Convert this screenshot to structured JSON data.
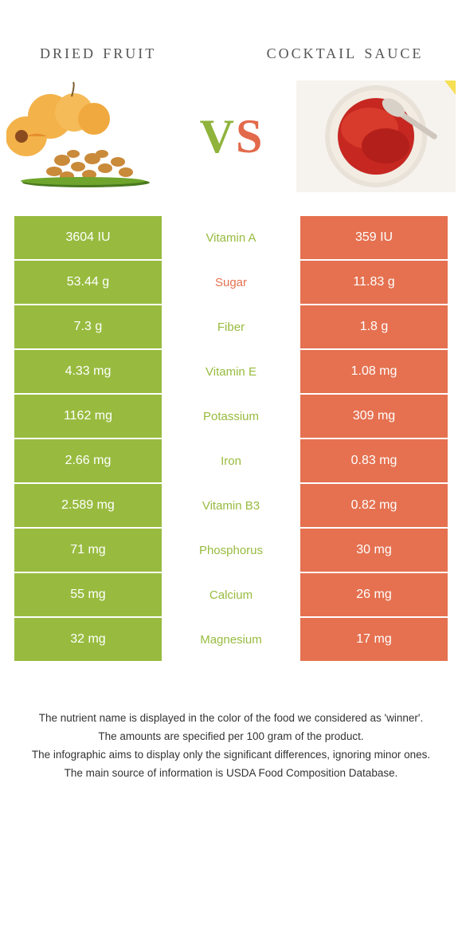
{
  "header": {
    "left_title": "dried fruit",
    "right_title": "cocktail sauce",
    "vs_v": "V",
    "vs_s": "S"
  },
  "colors": {
    "green": "#98bb3f",
    "orange": "#e57150",
    "text": "#333333"
  },
  "rows": [
    {
      "left": "3604 IU",
      "mid": "Vitamin A",
      "right": "359 IU",
      "winner": "green"
    },
    {
      "left": "53.44 g",
      "mid": "Sugar",
      "right": "11.83 g",
      "winner": "orange"
    },
    {
      "left": "7.3 g",
      "mid": "Fiber",
      "right": "1.8 g",
      "winner": "green"
    },
    {
      "left": "4.33 mg",
      "mid": "Vitamin E",
      "right": "1.08 mg",
      "winner": "green"
    },
    {
      "left": "1162 mg",
      "mid": "Potassium",
      "right": "309 mg",
      "winner": "green"
    },
    {
      "left": "2.66 mg",
      "mid": "Iron",
      "right": "0.83 mg",
      "winner": "green"
    },
    {
      "left": "2.589 mg",
      "mid": "Vitamin B3",
      "right": "0.82 mg",
      "winner": "green"
    },
    {
      "left": "71 mg",
      "mid": "Phosphorus",
      "right": "30 mg",
      "winner": "green"
    },
    {
      "left": "55 mg",
      "mid": "Calcium",
      "right": "26 mg",
      "winner": "green"
    },
    {
      "left": "32 mg",
      "mid": "Magnesium",
      "right": "17 mg",
      "winner": "green"
    }
  ],
  "footer": {
    "l1": "The nutrient name is displayed in the color of the food we considered as 'winner'.",
    "l2": "The amounts are specified per 100 gram of the product.",
    "l3": "The infographic aims to display only the significant differences, ignoring minor ones.",
    "l4": "The main source of information is USDA Food Composition Database."
  }
}
